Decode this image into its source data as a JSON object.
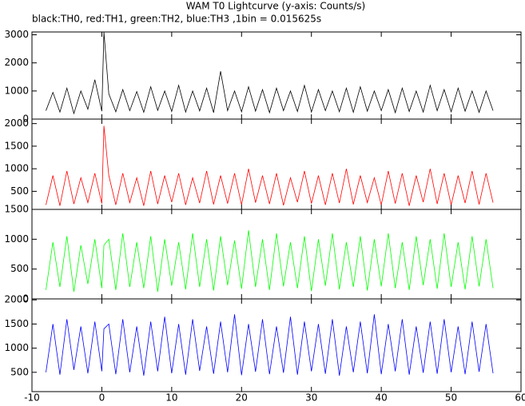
{
  "title": "WAM T0 Lightcurve (y-axis: Counts/s)",
  "subtitle": "black:TH0, red:TH1, green:TH2, blue:TH3 ,1bin = 0.015625s",
  "chart_data": [
    {
      "type": "line",
      "xlim": [
        -10,
        60
      ],
      "ylim": [
        0,
        3100
      ],
      "yticks": [
        0,
        1000,
        2000,
        3000
      ],
      "x": [
        -8,
        -7,
        -6,
        -5,
        -4,
        -3,
        -2,
        -1,
        0,
        0.3,
        1,
        2,
        3,
        4,
        5,
        6,
        7,
        8,
        9,
        10,
        11,
        12,
        13,
        14,
        15,
        16,
        17,
        18,
        19,
        20,
        21,
        22,
        23,
        24,
        25,
        26,
        27,
        28,
        29,
        30,
        31,
        32,
        33,
        34,
        35,
        36,
        37,
        38,
        39,
        40,
        41,
        42,
        43,
        44,
        45,
        46,
        47,
        48,
        49,
        50,
        51,
        52,
        53,
        54,
        55,
        56
      ],
      "series": [
        {
          "color": "#000000",
          "values": [
            300,
            950,
            250,
            1100,
            200,
            1000,
            350,
            1400,
            280,
            3100,
            900,
            260,
            1050,
            300,
            980,
            240,
            1150,
            310,
            1000,
            270,
            1200,
            250,
            1000,
            290,
            1100,
            230,
            1700,
            300,
            1000,
            260,
            1150,
            280,
            1050,
            230,
            1100,
            300,
            1000,
            270,
            1200,
            250,
            1050,
            300,
            1000,
            260,
            1100,
            240,
            1150,
            280,
            1000,
            300,
            1050,
            230,
            1100,
            270,
            1000,
            250,
            1200,
            300,
            1050,
            260,
            1100,
            280,
            1000,
            240,
            1000,
            300
          ]
        }
      ]
    },
    {
      "type": "line",
      "xlim": [
        -10,
        60
      ],
      "ylim": [
        100,
        2100
      ],
      "yticks": [
        500,
        1000,
        1500,
        2000
      ],
      "x": [
        -8,
        -7,
        -6,
        -5,
        -4,
        -3,
        -2,
        -1,
        0,
        0.3,
        1,
        2,
        3,
        4,
        5,
        6,
        7,
        8,
        9,
        10,
        11,
        12,
        13,
        14,
        15,
        16,
        17,
        18,
        19,
        20,
        21,
        22,
        23,
        24,
        25,
        26,
        27,
        28,
        29,
        30,
        31,
        32,
        33,
        34,
        35,
        36,
        37,
        38,
        39,
        40,
        41,
        42,
        43,
        44,
        45,
        46,
        47,
        48,
        49,
        50,
        51,
        52,
        53,
        54,
        55,
        56
      ],
      "series": [
        {
          "color": "#ff0000",
          "values": [
            200,
            850,
            180,
            950,
            220,
            800,
            250,
            900,
            230,
            1950,
            850,
            200,
            900,
            250,
            800,
            180,
            950,
            220,
            850,
            260,
            900,
            200,
            800,
            240,
            950,
            210,
            850,
            230,
            900,
            200,
            1000,
            250,
            850,
            220,
            900,
            190,
            800,
            260,
            950,
            230,
            850,
            200,
            900,
            240,
            1000,
            210,
            850,
            250,
            800,
            200,
            950,
            230,
            900,
            180,
            850,
            260,
            1000,
            220,
            900,
            200,
            850,
            240,
            950,
            210,
            900,
            250
          ]
        }
      ]
    },
    {
      "type": "line",
      "xlim": [
        -10,
        60
      ],
      "ylim": [
        0,
        1500
      ],
      "yticks": [
        0,
        500,
        1000,
        1500
      ],
      "x": [
        -8,
        -7,
        -6,
        -5,
        -4,
        -3,
        -2,
        -1,
        0,
        0.3,
        1,
        2,
        3,
        4,
        5,
        6,
        7,
        8,
        9,
        10,
        11,
        12,
        13,
        14,
        15,
        16,
        17,
        18,
        19,
        20,
        21,
        22,
        23,
        24,
        25,
        26,
        27,
        28,
        29,
        30,
        31,
        32,
        33,
        34,
        35,
        36,
        37,
        38,
        39,
        40,
        41,
        42,
        43,
        44,
        45,
        46,
        47,
        48,
        49,
        50,
        51,
        52,
        53,
        54,
        55,
        56
      ],
      "series": [
        {
          "color": "#00ff00",
          "values": [
            150,
            950,
            200,
            1050,
            120,
            900,
            250,
            1000,
            180,
            900,
            1000,
            150,
            1100,
            200,
            950,
            180,
            1050,
            120,
            1000,
            220,
            950,
            160,
            1100,
            200,
            1000,
            140,
            1050,
            230,
            980,
            170,
            1150,
            200,
            1000,
            150,
            1100,
            210,
            950,
            180,
            1050,
            130,
            1000,
            220,
            1100,
            160,
            950,
            200,
            1050,
            140,
            1000,
            210,
            1100,
            180,
            950,
            150,
            1050,
            230,
            1000,
            170,
            1100,
            200,
            950,
            160,
            1050,
            210,
            1000,
            180
          ]
        }
      ]
    },
    {
      "type": "line",
      "xlim": [
        -10,
        60
      ],
      "ylim": [
        100,
        2020
      ],
      "yticks": [
        500,
        1000,
        1500,
        2000
      ],
      "xticks": [
        -10,
        0,
        10,
        20,
        30,
        40,
        50,
        60
      ],
      "x": [
        -8,
        -7,
        -6,
        -5,
        -4,
        -3,
        -2,
        -1,
        0,
        0.3,
        1,
        2,
        3,
        4,
        5,
        6,
        7,
        8,
        9,
        10,
        11,
        12,
        13,
        14,
        15,
        16,
        17,
        18,
        19,
        20,
        21,
        22,
        23,
        24,
        25,
        26,
        27,
        28,
        29,
        30,
        31,
        32,
        33,
        34,
        35,
        36,
        37,
        38,
        39,
        40,
        41,
        42,
        43,
        44,
        45,
        46,
        47,
        48,
        49,
        50,
        51,
        52,
        53,
        54,
        55,
        56
      ],
      "series": [
        {
          "color": "#0000ff",
          "values": [
            500,
            1500,
            450,
            1600,
            550,
            1450,
            480,
            1550,
            520,
            1400,
            1500,
            460,
            1600,
            500,
            1450,
            430,
            1550,
            520,
            1650,
            480,
            1500,
            450,
            1600,
            530,
            1450,
            470,
            1550,
            500,
            1700,
            440,
            1500,
            510,
            1600,
            460,
            1450,
            490,
            1650,
            450,
            1550,
            520,
            1500,
            470,
            1600,
            430,
            1450,
            500,
            1550,
            480,
            1700,
            460,
            1500,
            520,
            1600,
            450,
            1450,
            490,
            1550,
            470,
            1600,
            500,
            1450,
            460,
            1550,
            510,
            1500,
            480
          ]
        }
      ]
    }
  ]
}
